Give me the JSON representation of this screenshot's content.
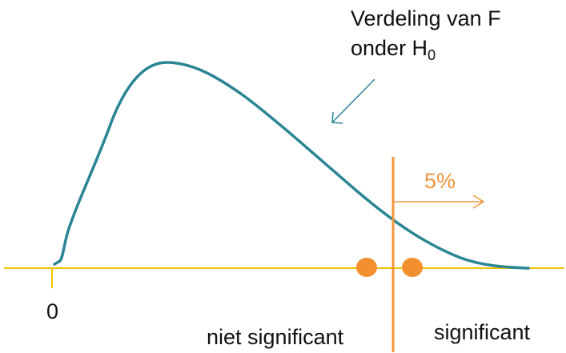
{
  "labels": {
    "distribution_line1": "Verdeling van F",
    "distribution_line2_main": "onder H",
    "distribution_line2_sub": "0",
    "zero": "0",
    "not_significant": "niet significant",
    "significant": "significant",
    "percent": "5%"
  },
  "colors": {
    "curve": "#2b8594",
    "axis": "#f0c000",
    "critical": "#f0963c",
    "dots": "#f2902f",
    "text": "#111111"
  }
}
